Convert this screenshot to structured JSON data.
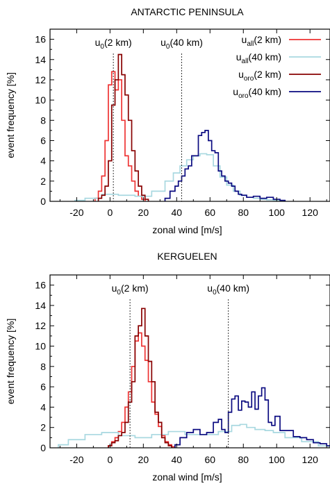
{
  "chart_data": [
    {
      "type": "histogram",
      "title": "ANTARCTIC PENINSULA",
      "xlabel": "zonal wind [m/s]",
      "ylabel": "event frequency [%]",
      "xlim": [
        -36,
        132
      ],
      "ylim": [
        0,
        17
      ],
      "xticks": [
        -20,
        0,
        20,
        40,
        60,
        80,
        100,
        120
      ],
      "yticks": [
        0,
        2,
        4,
        6,
        8,
        10,
        12,
        14,
        16
      ],
      "bin_width": 2,
      "annotations": [
        {
          "label": "u",
          "sub": "0",
          "suffix": "(2 km)",
          "x": 2
        },
        {
          "label": "u",
          "sub": "0",
          "suffix": "(40 km)",
          "x": 43
        }
      ],
      "series": [
        {
          "label": "u",
          "sub": "all",
          "suffix": "(2 km)",
          "color": "#ee3333",
          "x": [
            -8,
            -6,
            -4,
            -2,
            0,
            2,
            4,
            6,
            8,
            10,
            12,
            14,
            16,
            18,
            20
          ],
          "values": [
            0.3,
            1.0,
            2.5,
            6.0,
            11.5,
            12.8,
            11.0,
            12.0,
            8.0,
            4.5,
            3.5,
            2.0,
            1.0,
            0.5,
            0.2
          ]
        },
        {
          "label": "u",
          "sub": "all",
          "suffix": "(40 km)",
          "color": "#a8d8e0",
          "x": [
            -20,
            -10,
            0,
            10,
            20,
            30,
            36,
            40,
            44,
            48,
            52,
            56,
            60,
            64,
            68,
            72,
            76,
            80,
            84,
            88,
            92,
            96,
            100,
            104
          ],
          "values": [
            0.1,
            0.3,
            0.7,
            0.6,
            0.5,
            1.0,
            2.0,
            2.8,
            3.5,
            4.1,
            4.5,
            4.7,
            4.6,
            3.5,
            2.4,
            1.6,
            1.0,
            0.6,
            0.4,
            0.3,
            0.2,
            0.15,
            0.1,
            0.05
          ]
        },
        {
          "label": "u",
          "sub": "oro",
          "suffix": "(2 km)",
          "color": "#880000",
          "x": [
            -6,
            -4,
            -2,
            0,
            2,
            4,
            6,
            8,
            10,
            12,
            14,
            16,
            18,
            20,
            22
          ],
          "values": [
            0.3,
            0.6,
            1.5,
            4.0,
            9.5,
            12.0,
            14.5,
            12.5,
            10.5,
            8.0,
            5.0,
            3.0,
            1.5,
            0.6,
            0.2
          ]
        },
        {
          "label": "u",
          "sub": "oro",
          "suffix": "(40 km)",
          "color": "#0a0a80",
          "x": [
            34,
            38,
            40,
            42,
            44,
            46,
            48,
            50,
            52,
            54,
            56,
            58,
            60,
            62,
            64,
            66,
            68,
            70,
            72,
            74,
            76,
            78,
            80,
            84,
            88,
            92,
            96,
            100,
            104
          ],
          "values": [
            0.3,
            1.0,
            1.5,
            2.0,
            2.5,
            3.2,
            3.5,
            4.5,
            4.5,
            6.5,
            6.8,
            7.0,
            6.0,
            5.0,
            4.8,
            3.0,
            2.5,
            2.0,
            1.8,
            1.5,
            1.0,
            0.7,
            0.6,
            0.4,
            0.5,
            0.3,
            0.4,
            0.2,
            0.1
          ]
        }
      ]
    },
    {
      "type": "histogram",
      "title": "KERGUELEN",
      "xlabel": "zonal wind [m/s]",
      "ylabel": "event frequency [%]",
      "xlim": [
        -36,
        132
      ],
      "ylim": [
        0,
        17
      ],
      "xticks": [
        -20,
        0,
        20,
        40,
        60,
        80,
        100,
        120
      ],
      "yticks": [
        0,
        2,
        4,
        6,
        8,
        10,
        12,
        14,
        16
      ],
      "bin_width": 2,
      "annotations": [
        {
          "label": "u",
          "sub": "0",
          "suffix": "(2 km)",
          "x": 12
        },
        {
          "label": "u",
          "sub": "0",
          "suffix": "(40 km)",
          "x": 71
        }
      ],
      "series": [
        {
          "label": "u",
          "sub": "all",
          "suffix": "(2 km)",
          "color": "#ee3333",
          "x": [
            0,
            2,
            4,
            6,
            8,
            10,
            12,
            14,
            16,
            18,
            20,
            22,
            24,
            26,
            28,
            30,
            32,
            34,
            36,
            38
          ],
          "values": [
            0.2,
            0.6,
            1.0,
            1.6,
            2.5,
            4.0,
            5.5,
            8.0,
            10.5,
            11.3,
            10.0,
            8.6,
            6.5,
            4.5,
            3.3,
            2.1,
            1.2,
            0.6,
            0.3,
            0.1
          ]
        },
        {
          "label": "u",
          "sub": "all",
          "suffix": "(40 km)",
          "color": "#a8d8e0",
          "x": [
            -30,
            -20,
            -10,
            0,
            10,
            20,
            30,
            40,
            50,
            60,
            70,
            76,
            80,
            84,
            90,
            96,
            100,
            110,
            120,
            130
          ],
          "values": [
            0.3,
            0.8,
            1.3,
            1.5,
            1.2,
            1.0,
            1.3,
            1.6,
            1.3,
            1.3,
            1.6,
            2.2,
            2.3,
            2.0,
            1.8,
            1.7,
            1.5,
            1.0,
            0.6,
            0.2
          ]
        },
        {
          "label": "u",
          "sub": "oro",
          "suffix": "(2 km)",
          "color": "#880000",
          "x": [
            0,
            2,
            4,
            6,
            8,
            10,
            12,
            14,
            16,
            18,
            20,
            22,
            24,
            26,
            28,
            30,
            32,
            34,
            36
          ],
          "values": [
            0.2,
            0.5,
            0.7,
            1.2,
            1.5,
            2.5,
            4.5,
            6.5,
            11.0,
            12.0,
            13.7,
            11.0,
            8.5,
            6.5,
            3.5,
            2.5,
            1.0,
            0.5,
            0.2
          ]
        },
        {
          "label": "u",
          "sub": "oro",
          "suffix": "(40 km)",
          "color": "#0a0a80",
          "x": [
            40,
            44,
            48,
            52,
            56,
            60,
            64,
            66,
            68,
            70,
            72,
            74,
            76,
            78,
            80,
            82,
            84,
            86,
            88,
            90,
            92,
            94,
            96,
            98,
            100,
            104,
            108,
            112,
            116,
            120,
            124,
            128,
            132
          ],
          "values": [
            0.3,
            1.0,
            1.5,
            1.8,
            1.3,
            1.5,
            2.5,
            2.8,
            1.8,
            1.5,
            3.5,
            4.8,
            5.1,
            3.7,
            4.6,
            4.5,
            4.0,
            5.5,
            3.8,
            5.1,
            5.9,
            4.7,
            2.5,
            2.2,
            3.1,
            1.7,
            1.7,
            1.1,
            1.0,
            0.8,
            0.5,
            0.4,
            0.2
          ]
        }
      ]
    }
  ]
}
